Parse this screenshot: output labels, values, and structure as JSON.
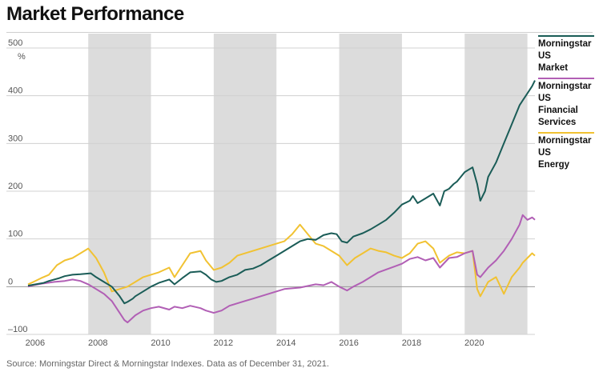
{
  "chart_data": {
    "type": "line",
    "title": "Market Performance",
    "ylabel": "%",
    "xlabel": "",
    "xlim": [
      2005.83,
      2021.99
    ],
    "ylim": [
      -100,
      500
    ],
    "y_ticks": [
      -100,
      0,
      100,
      200,
      300,
      400,
      500
    ],
    "y_tick_labels": [
      "–100",
      "0",
      "100",
      "200",
      "300",
      "400",
      "500"
    ],
    "x_ticks": [
      2006,
      2008,
      2010,
      2012,
      2014,
      2016,
      2018,
      2020
    ],
    "x_tick_labels": [
      "2006",
      "2008",
      "2010",
      "2012",
      "2014",
      "2016",
      "2018",
      "2020"
    ],
    "shaded_periods": [
      [
        2007.75,
        2009.75
      ],
      [
        2011.75,
        2013.75
      ],
      [
        2015.75,
        2017.75
      ],
      [
        2019.75,
        2021.75
      ]
    ],
    "grid": "horizontal",
    "legend_position": "right",
    "series": [
      {
        "name": "Morningstar US Market",
        "color": "#1a5c57",
        "x": [
          2005.83,
          2006.0,
          2006.33,
          2006.5,
          2006.83,
          2007.0,
          2007.25,
          2007.5,
          2007.83,
          2008.0,
          2008.25,
          2008.5,
          2008.75,
          2008.9,
          2009.0,
          2009.17,
          2009.25,
          2009.5,
          2009.75,
          2010.0,
          2010.33,
          2010.5,
          2010.75,
          2011.0,
          2011.33,
          2011.5,
          2011.67,
          2011.83,
          2012.0,
          2012.25,
          2012.5,
          2012.75,
          2013.0,
          2013.25,
          2013.5,
          2013.75,
          2014.0,
          2014.25,
          2014.5,
          2014.75,
          2015.0,
          2015.25,
          2015.5,
          2015.67,
          2015.83,
          2016.0,
          2016.2,
          2016.5,
          2016.75,
          2017.0,
          2017.25,
          2017.5,
          2017.75,
          2018.0,
          2018.1,
          2018.25,
          2018.5,
          2018.75,
          2018.96,
          2019.1,
          2019.25,
          2019.4,
          2019.5,
          2019.75,
          2020.0,
          2020.15,
          2020.25,
          2020.4,
          2020.5,
          2020.75,
          2021.0,
          2021.25,
          2021.5,
          2021.6,
          2021.75,
          2021.9,
          2021.99
        ],
        "values": [
          2,
          4,
          8,
          12,
          18,
          22,
          25,
          26,
          28,
          20,
          10,
          0,
          -20,
          -35,
          -32,
          -25,
          -20,
          -10,
          0,
          8,
          15,
          5,
          18,
          30,
          32,
          25,
          15,
          10,
          12,
          20,
          25,
          35,
          38,
          45,
          55,
          65,
          75,
          85,
          95,
          100,
          98,
          108,
          112,
          110,
          95,
          92,
          105,
          112,
          120,
          130,
          140,
          155,
          172,
          180,
          190,
          175,
          185,
          195,
          170,
          200,
          205,
          215,
          220,
          240,
          250,
          215,
          180,
          200,
          230,
          260,
          300,
          340,
          380,
          390,
          405,
          420,
          432
        ]
      },
      {
        "name": "Morningstar US Financial Services",
        "color": "#b15fb5",
        "x": [
          2005.83,
          2006.0,
          2006.33,
          2006.67,
          2007.0,
          2007.25,
          2007.5,
          2007.75,
          2008.0,
          2008.25,
          2008.5,
          2008.75,
          2008.9,
          2009.0,
          2009.25,
          2009.5,
          2009.75,
          2010.0,
          2010.33,
          2010.5,
          2010.75,
          2011.0,
          2011.33,
          2011.5,
          2011.75,
          2012.0,
          2012.25,
          2012.5,
          2012.75,
          2013.0,
          2013.5,
          2014.0,
          2014.5,
          2015.0,
          2015.25,
          2015.5,
          2015.75,
          2016.0,
          2016.2,
          2016.5,
          2016.75,
          2017.0,
          2017.5,
          2017.75,
          2018.0,
          2018.25,
          2018.5,
          2018.75,
          2018.96,
          2019.25,
          2019.5,
          2019.75,
          2020.0,
          2020.15,
          2020.25,
          2020.5,
          2020.75,
          2021.0,
          2021.25,
          2021.5,
          2021.6,
          2021.75,
          2021.9,
          2021.99
        ],
        "values": [
          0,
          3,
          7,
          10,
          12,
          15,
          12,
          5,
          -5,
          -15,
          -30,
          -55,
          -70,
          -75,
          -60,
          -50,
          -45,
          -42,
          -48,
          -42,
          -45,
          -40,
          -45,
          -50,
          -55,
          -50,
          -40,
          -35,
          -30,
          -25,
          -15,
          -5,
          -2,
          5,
          3,
          10,
          0,
          -8,
          0,
          10,
          20,
          30,
          42,
          48,
          58,
          62,
          55,
          60,
          40,
          60,
          62,
          70,
          75,
          25,
          20,
          40,
          55,
          75,
          100,
          130,
          150,
          140,
          145,
          140
        ]
      },
      {
        "name": "Morningstar US Energy",
        "color": "#f1c232",
        "x": [
          2005.83,
          2006.0,
          2006.25,
          2006.5,
          2006.75,
          2007.0,
          2007.25,
          2007.5,
          2007.75,
          2008.0,
          2008.25,
          2008.5,
          2008.75,
          2009.0,
          2009.25,
          2009.5,
          2009.75,
          2010.0,
          2010.33,
          2010.5,
          2010.75,
          2011.0,
          2011.33,
          2011.5,
          2011.75,
          2012.0,
          2012.25,
          2012.5,
          2012.75,
          2013.0,
          2013.5,
          2014.0,
          2014.25,
          2014.5,
          2014.75,
          2015.0,
          2015.25,
          2015.5,
          2015.75,
          2016.0,
          2016.25,
          2016.5,
          2016.75,
          2017.0,
          2017.25,
          2017.5,
          2017.75,
          2018.0,
          2018.25,
          2018.5,
          2018.75,
          2018.96,
          2019.25,
          2019.5,
          2019.75,
          2020.0,
          2020.15,
          2020.25,
          2020.5,
          2020.75,
          2021.0,
          2021.25,
          2021.5,
          2021.6,
          2021.75,
          2021.9,
          2021.99
        ],
        "values": [
          5,
          10,
          18,
          25,
          45,
          55,
          60,
          70,
          80,
          60,
          30,
          -10,
          -5,
          0,
          10,
          20,
          25,
          30,
          40,
          20,
          45,
          70,
          75,
          55,
          35,
          40,
          50,
          65,
          70,
          75,
          85,
          95,
          110,
          130,
          110,
          90,
          85,
          75,
          65,
          45,
          60,
          70,
          80,
          75,
          72,
          65,
          60,
          70,
          90,
          95,
          80,
          50,
          65,
          72,
          70,
          75,
          -5,
          -20,
          10,
          20,
          -15,
          20,
          40,
          50,
          60,
          70,
          65
        ]
      }
    ]
  },
  "source_note": "Source: Morningstar Direct & Morningstar Indexes. Data as of December 31, 2021.",
  "legend": {
    "items": [
      {
        "lines": [
          "Morningstar",
          "US",
          "Market"
        ],
        "color": "#1a5c57"
      },
      {
        "lines": [
          "Morningstar",
          "US",
          "Financial",
          "Services"
        ],
        "color": "#b15fb5"
      },
      {
        "lines": [
          "Morningstar",
          "US",
          "Energy"
        ],
        "color": "#f1c232"
      }
    ]
  }
}
